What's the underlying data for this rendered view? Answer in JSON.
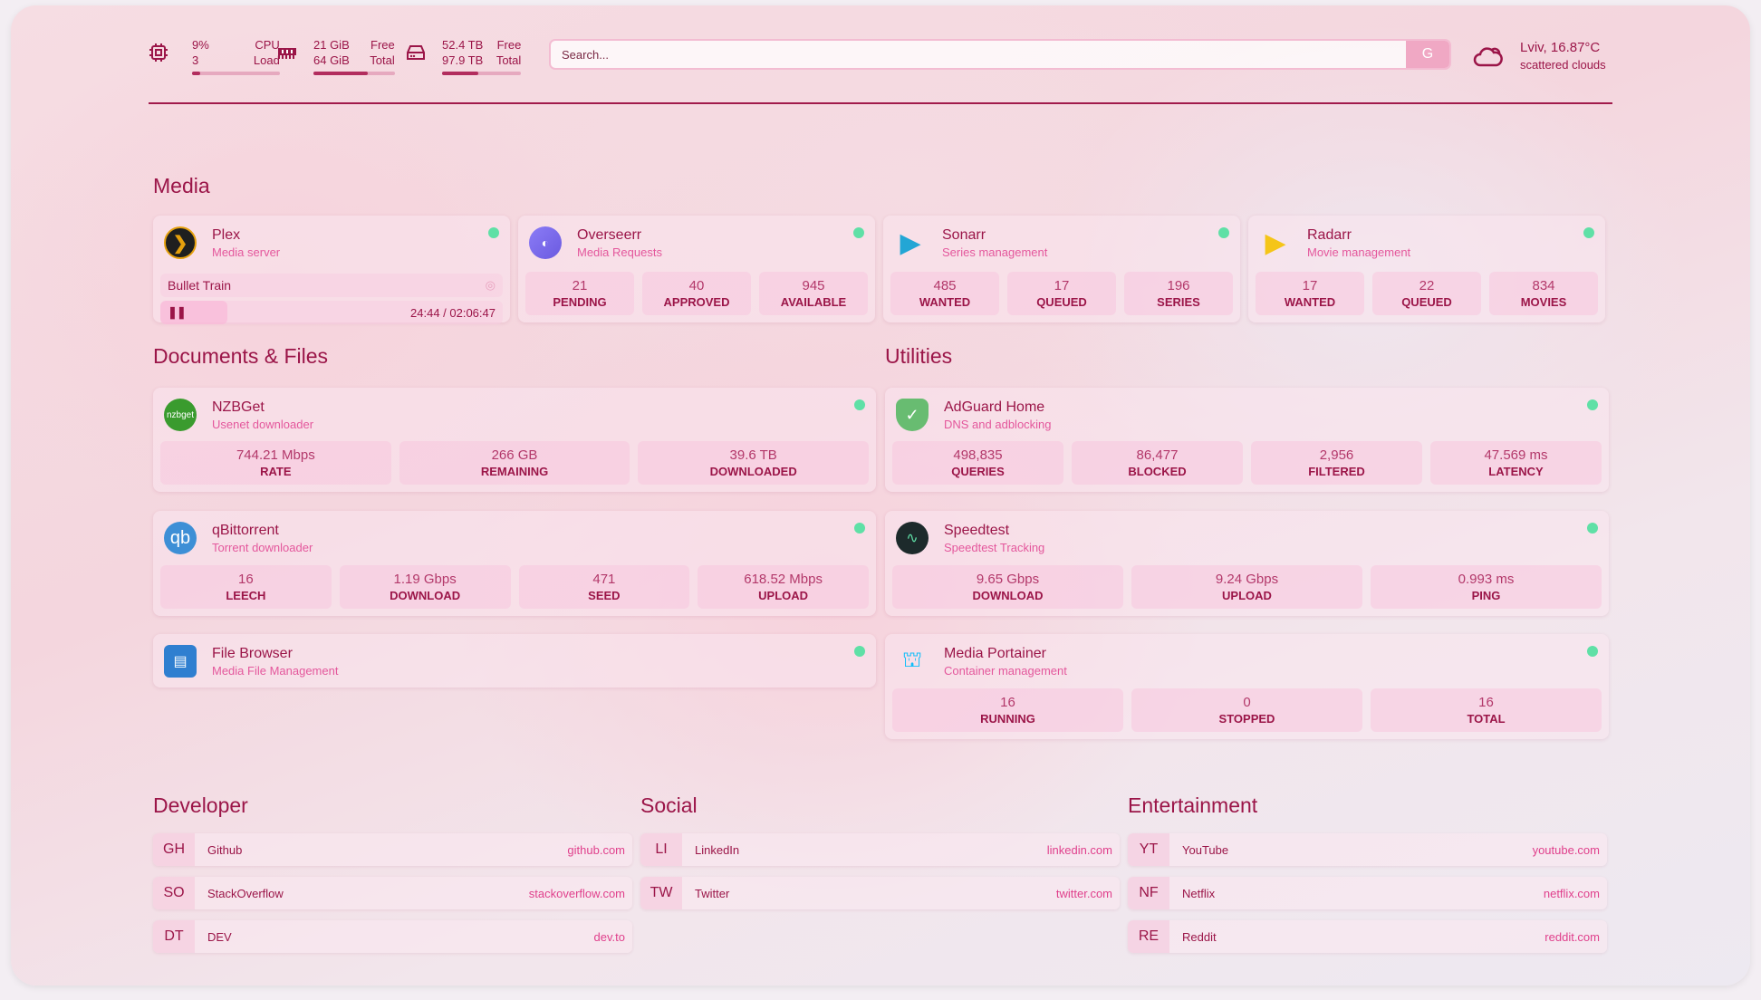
{
  "header": {
    "cpu": {
      "icon": "cpu-icon",
      "value": "9%",
      "sub": "3",
      "label1": "CPU",
      "label2": "Load",
      "fill": 0.09
    },
    "memory": {
      "icon": "memory-icon",
      "value": "21 GiB",
      "sub": "64 GiB",
      "label1": "Free",
      "label2": "Total",
      "fill": 0.67
    },
    "disk": {
      "icon": "disk-icon",
      "value": "52.4 TB",
      "sub": "97.9 TB",
      "label1": "Free",
      "label2": "Total",
      "fill": 0.46
    },
    "search": {
      "placeholder": "Search...",
      "button": "G"
    },
    "weather": {
      "icon": "cloud-sun-icon",
      "location": "Lviv, 16.87°C",
      "condition": "scattered clouds"
    }
  },
  "colors": {
    "accent": "#9b1548",
    "subtitle": "#e4579c",
    "status_up": "#5fe0a6"
  },
  "media": {
    "title": "Media",
    "cards": [
      {
        "name": "Plex",
        "desc": "Media server",
        "icon": "plex-icon",
        "now_playing": {
          "title": "Bullet Train",
          "time": "24:44 / 02:06:47",
          "progress": 0.196
        }
      },
      {
        "name": "Overseerr",
        "desc": "Media Requests",
        "icon": "overseerr-icon",
        "stats": [
          {
            "v": "21",
            "l": "PENDING"
          },
          {
            "v": "40",
            "l": "APPROVED"
          },
          {
            "v": "945",
            "l": "AVAILABLE"
          }
        ]
      },
      {
        "name": "Sonarr",
        "desc": "Series management",
        "icon": "sonarr-icon",
        "stats": [
          {
            "v": "485",
            "l": "WANTED"
          },
          {
            "v": "17",
            "l": "QUEUED"
          },
          {
            "v": "196",
            "l": "SERIES"
          }
        ]
      },
      {
        "name": "Radarr",
        "desc": "Movie management",
        "icon": "radarr-icon",
        "stats": [
          {
            "v": "17",
            "l": "WANTED"
          },
          {
            "v": "22",
            "l": "QUEUED"
          },
          {
            "v": "834",
            "l": "MOVIES"
          }
        ]
      }
    ]
  },
  "documents": {
    "title": "Documents & Files",
    "cards": [
      {
        "name": "NZBGet",
        "desc": "Usenet downloader",
        "icon": "nzbget-icon",
        "icon_text": "nzbget",
        "stats": [
          {
            "v": "744.21 Mbps",
            "l": "RATE"
          },
          {
            "v": "266 GB",
            "l": "REMAINING"
          },
          {
            "v": "39.6 TB",
            "l": "DOWNLOADED"
          }
        ]
      },
      {
        "name": "qBittorrent",
        "desc": "Torrent downloader",
        "icon": "qbittorrent-icon",
        "icon_text": "qb",
        "stats": [
          {
            "v": "16",
            "l": "LEECH"
          },
          {
            "v": "1.19 Gbps",
            "l": "DOWNLOAD"
          },
          {
            "v": "471",
            "l": "SEED"
          },
          {
            "v": "618.52 Mbps",
            "l": "UPLOAD"
          }
        ]
      },
      {
        "name": "File Browser",
        "desc": "Media File Management",
        "icon": "file-browser-icon"
      }
    ]
  },
  "utilities": {
    "title": "Utilities",
    "cards": [
      {
        "name": "AdGuard Home",
        "desc": "DNS and adblocking",
        "icon": "adguard-shield-icon",
        "stats": [
          {
            "v": "498,835",
            "l": "QUERIES"
          },
          {
            "v": "86,477",
            "l": "BLOCKED"
          },
          {
            "v": "2,956",
            "l": "FILTERED"
          },
          {
            "v": "47.569 ms",
            "l": "LATENCY"
          }
        ]
      },
      {
        "name": "Speedtest",
        "desc": "Speedtest Tracking",
        "icon": "speedtest-icon",
        "stats": [
          {
            "v": "9.65 Gbps",
            "l": "DOWNLOAD"
          },
          {
            "v": "9.24 Gbps",
            "l": "UPLOAD"
          },
          {
            "v": "0.993 ms",
            "l": "PING"
          }
        ]
      },
      {
        "name": "Media Portainer",
        "desc": "Container management",
        "icon": "portainer-icon",
        "stats": [
          {
            "v": "16",
            "l": "RUNNING"
          },
          {
            "v": "0",
            "l": "STOPPED"
          },
          {
            "v": "16",
            "l": "TOTAL"
          }
        ]
      }
    ]
  },
  "bookmarks": [
    {
      "title": "Developer",
      "items": [
        {
          "abbr": "GH",
          "name": "Github",
          "url": "github.com"
        },
        {
          "abbr": "SO",
          "name": "StackOverflow",
          "url": "stackoverflow.com"
        },
        {
          "abbr": "DT",
          "name": "DEV",
          "url": "dev.to"
        }
      ]
    },
    {
      "title": "Social",
      "items": [
        {
          "abbr": "LI",
          "name": "LinkedIn",
          "url": "linkedin.com"
        },
        {
          "abbr": "TW",
          "name": "Twitter",
          "url": "twitter.com"
        }
      ]
    },
    {
      "title": "Entertainment",
      "items": [
        {
          "abbr": "YT",
          "name": "YouTube",
          "url": "youtube.com"
        },
        {
          "abbr": "NF",
          "name": "Netflix",
          "url": "netflix.com"
        },
        {
          "abbr": "RE",
          "name": "Reddit",
          "url": "reddit.com"
        }
      ]
    }
  ]
}
